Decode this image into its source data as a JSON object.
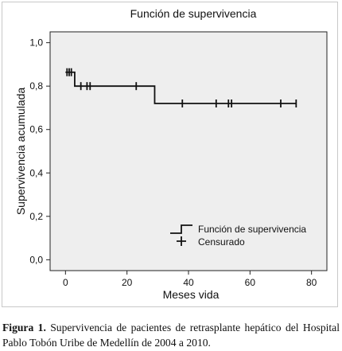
{
  "chart_data": {
    "type": "line",
    "title": "Función de supervivencia",
    "xlabel": "Meses vida",
    "ylabel": "Supervivencia acumulada",
    "xlim": [
      -5,
      85
    ],
    "ylim": [
      -0.05,
      1.05
    ],
    "x_ticks": [
      0,
      20,
      40,
      60,
      80
    ],
    "x_tick_labels": [
      "0",
      "20",
      "40",
      "60",
      "80"
    ],
    "y_ticks": [
      0.0,
      0.2,
      0.4,
      0.6,
      0.8,
      1.0
    ],
    "y_tick_labels": [
      "0,0",
      "0,2",
      "0,4",
      "0,6",
      "0,8",
      "1,0"
    ],
    "grid": false,
    "background": "#eeeeee",
    "line_color": "#111111",
    "series": [
      {
        "name": "Función de supervivencia",
        "kind": "step",
        "x": [
          0,
          3,
          29,
          75
        ],
        "y": [
          0.864,
          0.8,
          0.72,
          0.72
        ]
      },
      {
        "name": "Censurado",
        "kind": "censor-marks",
        "x": [
          0.5,
          1.2,
          1.9,
          5,
          7,
          8,
          23,
          38,
          49,
          53,
          54,
          70,
          75
        ],
        "y": [
          0.864,
          0.864,
          0.864,
          0.8,
          0.8,
          0.8,
          0.8,
          0.72,
          0.72,
          0.72,
          0.72,
          0.72,
          0.72
        ]
      }
    ],
    "legend": {
      "placement": "bottom-right",
      "entries": [
        "Función de supervivencia",
        "Censurado"
      ]
    }
  },
  "caption": {
    "label": "Figura 1.",
    "text": "Supervivencia de pacientes de retrasplante hepático del Hospital Pablo Tobón Uribe de Medellín de 2004 a 2010."
  }
}
